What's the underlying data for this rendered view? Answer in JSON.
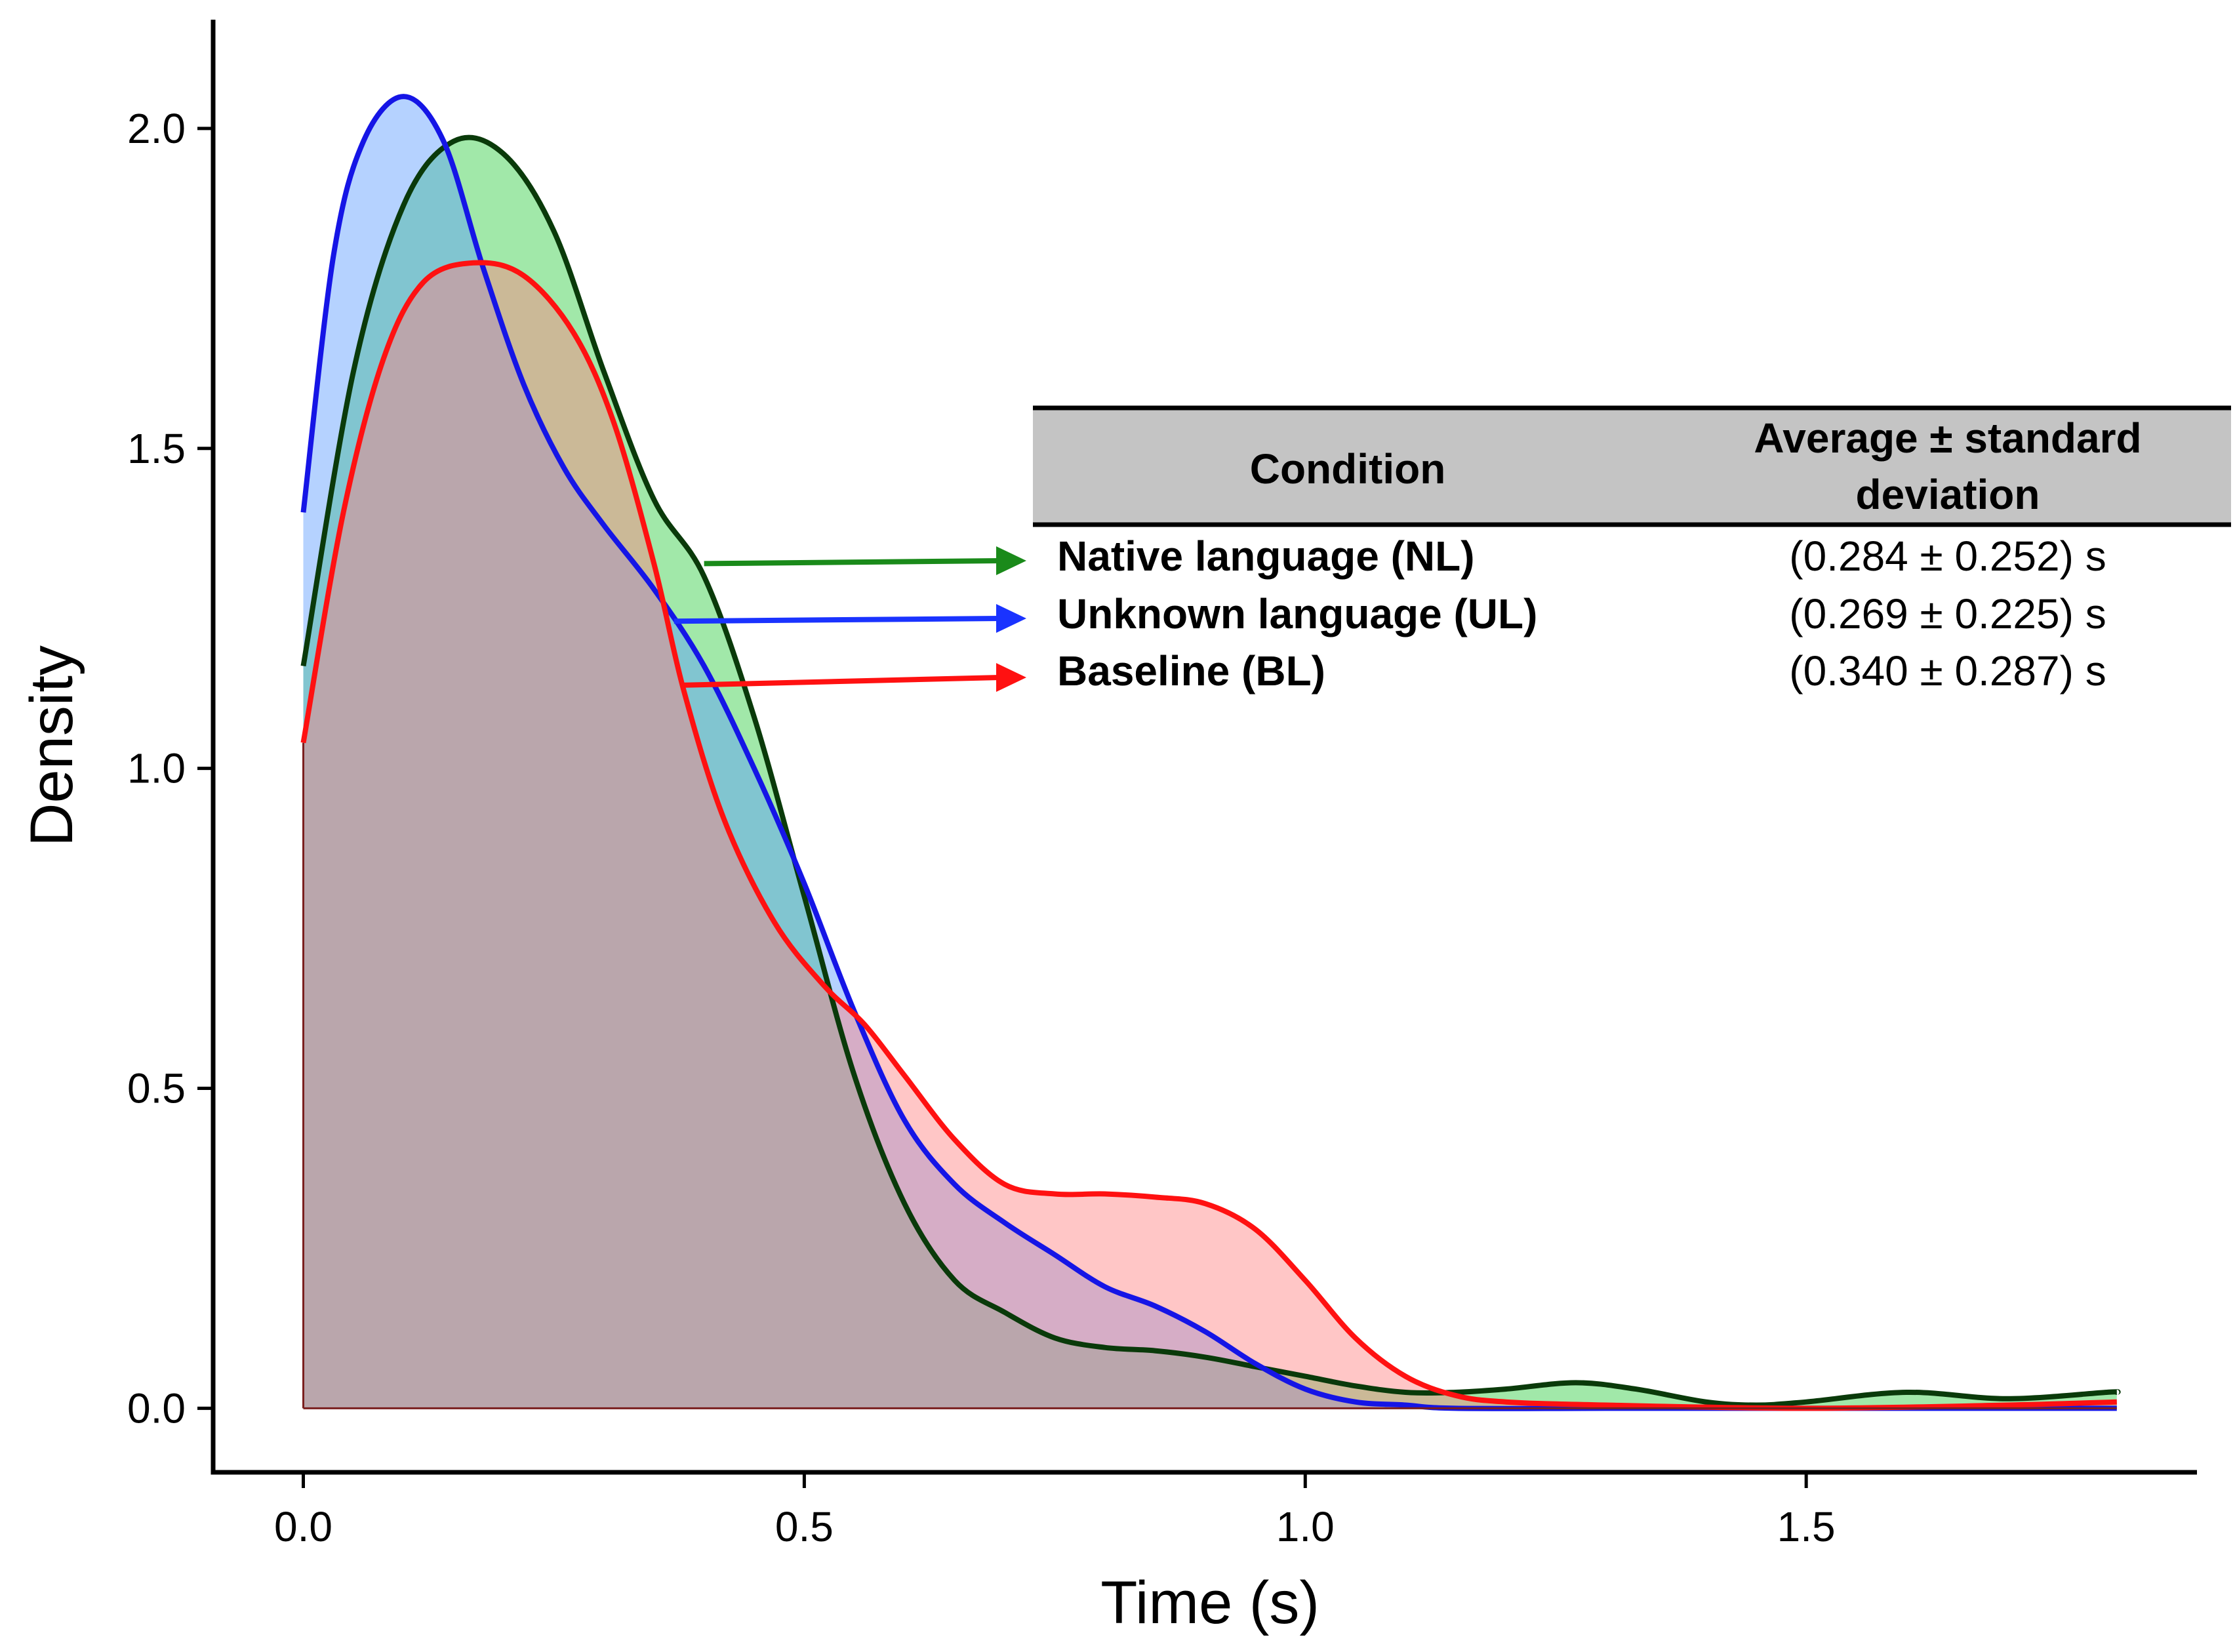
{
  "chart_data": {
    "type": "area",
    "title": "",
    "xlabel": "Time (s)",
    "ylabel": "Density",
    "xlim": [
      -0.09,
      1.89
    ],
    "ylim": [
      -0.1,
      2.17
    ],
    "x_ticks": [
      0.0,
      0.5,
      1.0,
      1.5
    ],
    "x_tick_labels": [
      "0.0",
      "0.5",
      "1.0",
      "1.5"
    ],
    "y_ticks": [
      0.0,
      0.5,
      1.0,
      1.5,
      2.0
    ],
    "y_tick_labels": [
      "0.0",
      "0.5",
      "1.0",
      "1.5",
      "2.0"
    ],
    "series": [
      {
        "name": "Native language (NL)",
        "line_color": "#0a3a0a",
        "fill_color": "#2ecc40",
        "label_arrow_color": "#1a8a1a",
        "points": [
          [
            0.0,
            1.16
          ],
          [
            0.05,
            1.62
          ],
          [
            0.1,
            1.88
          ],
          [
            0.15,
            1.98
          ],
          [
            0.2,
            1.96
          ],
          [
            0.25,
            1.84
          ],
          [
            0.3,
            1.62
          ],
          [
            0.35,
            1.42
          ],
          [
            0.4,
            1.3
          ],
          [
            0.45,
            1.08
          ],
          [
            0.5,
            0.8
          ],
          [
            0.55,
            0.52
          ],
          [
            0.6,
            0.32
          ],
          [
            0.65,
            0.2
          ],
          [
            0.7,
            0.15
          ],
          [
            0.75,
            0.11
          ],
          [
            0.8,
            0.095
          ],
          [
            0.85,
            0.09
          ],
          [
            0.9,
            0.08
          ],
          [
            0.95,
            0.065
          ],
          [
            1.0,
            0.05
          ],
          [
            1.05,
            0.035
          ],
          [
            1.1,
            0.025
          ],
          [
            1.15,
            0.025
          ],
          [
            1.2,
            0.03
          ],
          [
            1.27,
            0.04
          ],
          [
            1.33,
            0.03
          ],
          [
            1.4,
            0.01
          ],
          [
            1.45,
            0.005
          ],
          [
            1.5,
            0.01
          ],
          [
            1.6,
            0.025
          ],
          [
            1.7,
            0.015
          ],
          [
            1.8,
            0.025
          ],
          [
            1.81,
            0.025
          ]
        ]
      },
      {
        "name": "Unknown language (UL)",
        "line_color": "#1515e6",
        "fill_color": "#5a9cff",
        "label_arrow_color": "#1a33ff",
        "points": [
          [
            0.0,
            1.4
          ],
          [
            0.03,
            1.8
          ],
          [
            0.06,
            1.98
          ],
          [
            0.1,
            2.05
          ],
          [
            0.14,
            1.98
          ],
          [
            0.18,
            1.78
          ],
          [
            0.22,
            1.6
          ],
          [
            0.26,
            1.47
          ],
          [
            0.3,
            1.38
          ],
          [
            0.35,
            1.28
          ],
          [
            0.4,
            1.16
          ],
          [
            0.45,
            1.0
          ],
          [
            0.5,
            0.82
          ],
          [
            0.55,
            0.62
          ],
          [
            0.6,
            0.45
          ],
          [
            0.65,
            0.35
          ],
          [
            0.7,
            0.29
          ],
          [
            0.75,
            0.24
          ],
          [
            0.8,
            0.19
          ],
          [
            0.85,
            0.16
          ],
          [
            0.9,
            0.12
          ],
          [
            0.95,
            0.07
          ],
          [
            1.0,
            0.03
          ],
          [
            1.05,
            0.01
          ],
          [
            1.1,
            0.005
          ],
          [
            1.15,
            0.0
          ],
          [
            1.3,
            0.0
          ],
          [
            1.5,
            0.0
          ],
          [
            1.81,
            0.0
          ]
        ]
      },
      {
        "name": "Baseline (BL)",
        "line_color": "#ff1111",
        "fill_color": "#ff8080",
        "label_arrow_color": "#ff1111",
        "points": [
          [
            0.0,
            1.04
          ],
          [
            0.04,
            1.4
          ],
          [
            0.08,
            1.64
          ],
          [
            0.12,
            1.76
          ],
          [
            0.17,
            1.79
          ],
          [
            0.22,
            1.77
          ],
          [
            0.27,
            1.68
          ],
          [
            0.31,
            1.54
          ],
          [
            0.35,
            1.32
          ],
          [
            0.38,
            1.12
          ],
          [
            0.42,
            0.92
          ],
          [
            0.47,
            0.76
          ],
          [
            0.52,
            0.66
          ],
          [
            0.56,
            0.6
          ],
          [
            0.6,
            0.52
          ],
          [
            0.65,
            0.42
          ],
          [
            0.7,
            0.35
          ],
          [
            0.75,
            0.335
          ],
          [
            0.8,
            0.335
          ],
          [
            0.85,
            0.33
          ],
          [
            0.9,
            0.32
          ],
          [
            0.95,
            0.28
          ],
          [
            1.0,
            0.2
          ],
          [
            1.05,
            0.11
          ],
          [
            1.1,
            0.05
          ],
          [
            1.15,
            0.02
          ],
          [
            1.2,
            0.01
          ],
          [
            1.3,
            0.005
          ],
          [
            1.5,
            0.0
          ],
          [
            1.7,
            0.005
          ],
          [
            1.81,
            0.01
          ]
        ]
      }
    ],
    "table": {
      "headers": [
        "Condition",
        "Average ± standard deviation"
      ],
      "header_condition": "Condition",
      "header_avg_line1": "Average ± standard",
      "header_avg_line2": "deviation",
      "rows": [
        {
          "condition": "Native language (NL)",
          "value": "(0.284 ± 0.252) s"
        },
        {
          "condition": "Unknown language (UL)",
          "value": "(0.269 ± 0.225) s"
        },
        {
          "condition": "Baseline (BL)",
          "value": "(0.340 ± 0.287) s"
        }
      ],
      "header_fill": "#c4c4c4",
      "arrow_anchor_x": [
        0.4,
        0.37,
        0.38
      ],
      "arrow_anchor_y": [
        1.32,
        1.23,
        1.13
      ]
    }
  }
}
